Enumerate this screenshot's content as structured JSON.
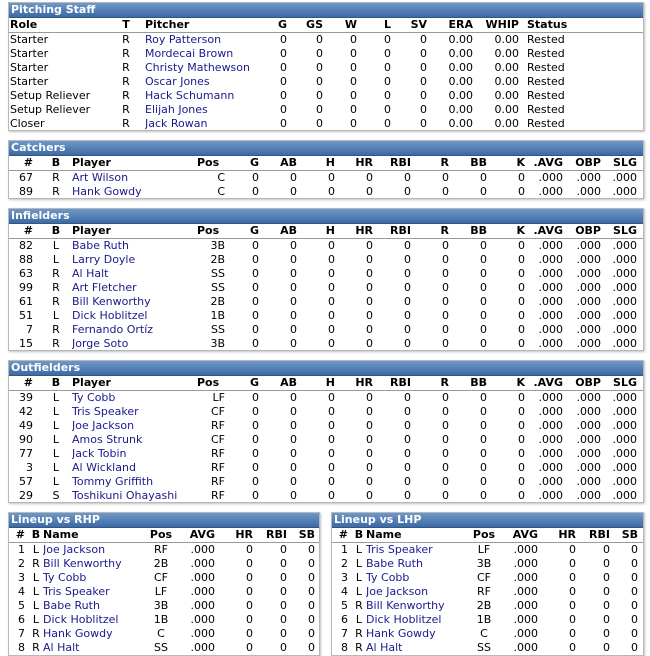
{
  "pitching": {
    "title": "Pitching Staff",
    "columns": [
      "Role",
      "T",
      "Pitcher",
      "G",
      "GS",
      "W",
      "L",
      "SV",
      "ERA",
      "WHIP",
      "Status"
    ],
    "rows": [
      [
        "Starter",
        "R",
        "Roy Patterson",
        "0",
        "0",
        "0",
        "0",
        "0",
        "0.00",
        "0.00",
        "Rested"
      ],
      [
        "Starter",
        "R",
        "Mordecai Brown",
        "0",
        "0",
        "0",
        "0",
        "0",
        "0.00",
        "0.00",
        "Rested"
      ],
      [
        "Starter",
        "R",
        "Christy Mathewson",
        "0",
        "0",
        "0",
        "0",
        "0",
        "0.00",
        "0.00",
        "Rested"
      ],
      [
        "Starter",
        "R",
        "Oscar Jones",
        "0",
        "0",
        "0",
        "0",
        "0",
        "0.00",
        "0.00",
        "Rested"
      ],
      [
        "Setup Reliever",
        "R",
        "Hack Schumann",
        "0",
        "0",
        "0",
        "0",
        "0",
        "0.00",
        "0.00",
        "Rested"
      ],
      [
        "Setup Reliever",
        "R",
        "Elijah Jones",
        "0",
        "0",
        "0",
        "0",
        "0",
        "0.00",
        "0.00",
        "Rested"
      ],
      [
        "Closer",
        "R",
        "Jack Rowan",
        "0",
        "0",
        "0",
        "0",
        "0",
        "0.00",
        "0.00",
        "Rested"
      ]
    ]
  },
  "catchers": {
    "title": "Catchers",
    "columns": [
      "#",
      "B",
      "Player",
      "Pos",
      "G",
      "AB",
      "H",
      "HR",
      "RBI",
      "R",
      "BB",
      "K",
      ".AVG",
      "OBP",
      "SLG"
    ],
    "rows": [
      [
        "67",
        "R",
        "Art Wilson",
        "C",
        "0",
        "0",
        "0",
        "0",
        "0",
        "0",
        "0",
        "0",
        ".000",
        ".000",
        ".000"
      ],
      [
        "89",
        "R",
        "Hank Gowdy",
        "C",
        "0",
        "0",
        "0",
        "0",
        "0",
        "0",
        "0",
        "0",
        ".000",
        ".000",
        ".000"
      ]
    ]
  },
  "infielders": {
    "title": "Infielders",
    "columns": [
      "#",
      "B",
      "Player",
      "Pos",
      "G",
      "AB",
      "H",
      "HR",
      "RBI",
      "R",
      "BB",
      "K",
      ".AVG",
      "OBP",
      "SLG"
    ],
    "rows": [
      [
        "82",
        "L",
        "Babe Ruth",
        "3B",
        "0",
        "0",
        "0",
        "0",
        "0",
        "0",
        "0",
        "0",
        ".000",
        ".000",
        ".000"
      ],
      [
        "88",
        "L",
        "Larry Doyle",
        "2B",
        "0",
        "0",
        "0",
        "0",
        "0",
        "0",
        "0",
        "0",
        ".000",
        ".000",
        ".000"
      ],
      [
        "63",
        "R",
        "Al Halt",
        "SS",
        "0",
        "0",
        "0",
        "0",
        "0",
        "0",
        "0",
        "0",
        ".000",
        ".000",
        ".000"
      ],
      [
        "99",
        "R",
        "Art Fletcher",
        "SS",
        "0",
        "0",
        "0",
        "0",
        "0",
        "0",
        "0",
        "0",
        ".000",
        ".000",
        ".000"
      ],
      [
        "61",
        "R",
        "Bill Kenworthy",
        "2B",
        "0",
        "0",
        "0",
        "0",
        "0",
        "0",
        "0",
        "0",
        ".000",
        ".000",
        ".000"
      ],
      [
        "51",
        "L",
        "Dick Hoblitzel",
        "1B",
        "0",
        "0",
        "0",
        "0",
        "0",
        "0",
        "0",
        "0",
        ".000",
        ".000",
        ".000"
      ],
      [
        "7",
        "R",
        "Fernando Ortíz",
        "SS",
        "0",
        "0",
        "0",
        "0",
        "0",
        "0",
        "0",
        "0",
        ".000",
        ".000",
        ".000"
      ],
      [
        "15",
        "R",
        "Jorge Soto",
        "3B",
        "0",
        "0",
        "0",
        "0",
        "0",
        "0",
        "0",
        "0",
        ".000",
        ".000",
        ".000"
      ]
    ]
  },
  "outfielders": {
    "title": "Outfielders",
    "columns": [
      "#",
      "B",
      "Player",
      "Pos",
      "G",
      "AB",
      "H",
      "HR",
      "RBI",
      "R",
      "BB",
      "K",
      ".AVG",
      "OBP",
      "SLG"
    ],
    "rows": [
      [
        "39",
        "L",
        "Ty Cobb",
        "LF",
        "0",
        "0",
        "0",
        "0",
        "0",
        "0",
        "0",
        "0",
        ".000",
        ".000",
        ".000"
      ],
      [
        "42",
        "L",
        "Tris Speaker",
        "CF",
        "0",
        "0",
        "0",
        "0",
        "0",
        "0",
        "0",
        "0",
        ".000",
        ".000",
        ".000"
      ],
      [
        "49",
        "L",
        "Joe Jackson",
        "RF",
        "0",
        "0",
        "0",
        "0",
        "0",
        "0",
        "0",
        "0",
        ".000",
        ".000",
        ".000"
      ],
      [
        "90",
        "L",
        "Amos Strunk",
        "CF",
        "0",
        "0",
        "0",
        "0",
        "0",
        "0",
        "0",
        "0",
        ".000",
        ".000",
        ".000"
      ],
      [
        "77",
        "L",
        "Jack Tobin",
        "RF",
        "0",
        "0",
        "0",
        "0",
        "0",
        "0",
        "0",
        "0",
        ".000",
        ".000",
        ".000"
      ],
      [
        "3",
        "L",
        "Al Wickland",
        "RF",
        "0",
        "0",
        "0",
        "0",
        "0",
        "0",
        "0",
        "0",
        ".000",
        ".000",
        ".000"
      ],
      [
        "57",
        "L",
        "Tommy Griffith",
        "RF",
        "0",
        "0",
        "0",
        "0",
        "0",
        "0",
        "0",
        "0",
        ".000",
        ".000",
        ".000"
      ],
      [
        "29",
        "S",
        "Toshikuni Ohayashi",
        "RF",
        "0",
        "0",
        "0",
        "0",
        "0",
        "0",
        "0",
        "0",
        ".000",
        ".000",
        ".000"
      ]
    ]
  },
  "lineup_rhp": {
    "title": "Lineup vs RHP",
    "columns": [
      "#",
      "B",
      "Name",
      "Pos",
      "AVG",
      "HR",
      "RBI",
      "SB"
    ],
    "rows": [
      [
        "1",
        "L",
        "Joe Jackson",
        "RF",
        ".000",
        "0",
        "0",
        "0"
      ],
      [
        "2",
        "R",
        "Bill Kenworthy",
        "2B",
        ".000",
        "0",
        "0",
        "0"
      ],
      [
        "3",
        "L",
        "Ty Cobb",
        "CF",
        ".000",
        "0",
        "0",
        "0"
      ],
      [
        "4",
        "L",
        "Tris Speaker",
        "LF",
        ".000",
        "0",
        "0",
        "0"
      ],
      [
        "5",
        "L",
        "Babe Ruth",
        "3B",
        ".000",
        "0",
        "0",
        "0"
      ],
      [
        "6",
        "L",
        "Dick Hoblitzel",
        "1B",
        ".000",
        "0",
        "0",
        "0"
      ],
      [
        "7",
        "R",
        "Hank Gowdy",
        "C",
        ".000",
        "0",
        "0",
        "0"
      ],
      [
        "8",
        "R",
        "Al Halt",
        "SS",
        ".000",
        "0",
        "0",
        "0"
      ]
    ]
  },
  "lineup_lhp": {
    "title": "Lineup vs LHP",
    "columns": [
      "#",
      "B",
      "Name",
      "Pos",
      "AVG",
      "HR",
      "RBI",
      "SB"
    ],
    "rows": [
      [
        "1",
        "L",
        "Tris Speaker",
        "LF",
        ".000",
        "0",
        "0",
        "0"
      ],
      [
        "2",
        "L",
        "Babe Ruth",
        "3B",
        ".000",
        "0",
        "0",
        "0"
      ],
      [
        "3",
        "L",
        "Ty Cobb",
        "CF",
        ".000",
        "0",
        "0",
        "0"
      ],
      [
        "4",
        "L",
        "Joe Jackson",
        "RF",
        ".000",
        "0",
        "0",
        "0"
      ],
      [
        "5",
        "R",
        "Bill Kenworthy",
        "2B",
        ".000",
        "0",
        "0",
        "0"
      ],
      [
        "6",
        "L",
        "Dick Hoblitzel",
        "1B",
        ".000",
        "0",
        "0",
        "0"
      ],
      [
        "7",
        "R",
        "Hank Gowdy",
        "C",
        ".000",
        "0",
        "0",
        "0"
      ],
      [
        "8",
        "R",
        "Al Halt",
        "SS",
        ".000",
        "0",
        "0",
        "0"
      ]
    ]
  }
}
